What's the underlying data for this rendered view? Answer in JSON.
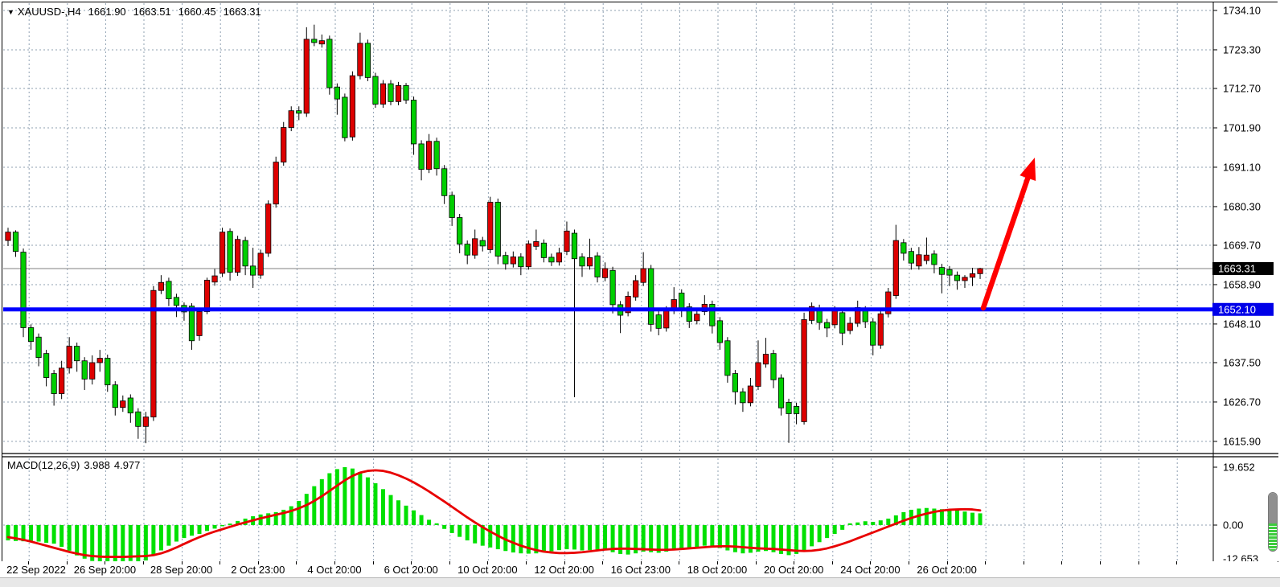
{
  "header": {
    "dropdown_icon": "▼",
    "symbol_period": "XAUUSD-,H4",
    "open": "1661.90",
    "high": "1663.51",
    "low": "1660.45",
    "close": "1663.31"
  },
  "macd_panel": {
    "label": "MACD(12,26,9)",
    "value": "3.988",
    "signal_value": "4.977",
    "axis_labels": [
      "19.652",
      "0.00",
      "-12.653"
    ]
  },
  "price_axis": {
    "labels": [
      "1734.10",
      "1723.30",
      "1712.70",
      "1701.90",
      "1691.10",
      "1680.30",
      "1669.70",
      "1658.90",
      "1648.10",
      "1637.50",
      "1626.70",
      "1615.90"
    ],
    "current_price": "1663.31",
    "support_price": "1652.10"
  },
  "colors": {
    "bull": "#dd0000",
    "bear": "#00cf00",
    "wick": "#000000",
    "grid": "#8fa0b2",
    "current_line": "#808080",
    "support_line": "#0000ff",
    "arrow": "#ff0000",
    "macd_bar": "#00e000",
    "macd_signal": "#e80000",
    "badge_current_bg": "#000000",
    "badge_support_bg": "#0000e8",
    "badge_text": "#ffffff"
  },
  "chart_data": {
    "type": "candlestick",
    "title": "XAUUSD- H4 with MACD(12,26,9)",
    "x_tick_labels": [
      "22 Sep 2022",
      "26 Sep 20:00",
      "28 Sep 20:00",
      "2 Oct 23:00",
      "4 Oct 20:00",
      "6 Oct 20:00",
      "10 Oct 20:00",
      "12 Oct 20:00",
      "16 Oct 23:00",
      "18 Oct 20:00",
      "20 Oct 20:00",
      "24 Oct 20:00",
      "26 Oct 20:00"
    ],
    "price_ticks": [
      1734.1,
      1723.3,
      1712.7,
      1701.9,
      1691.1,
      1680.3,
      1669.7,
      1658.9,
      1648.1,
      1637.5,
      1626.7,
      1615.9
    ],
    "price_range": [
      1615.9,
      1734.1
    ],
    "current_price": 1663.31,
    "support_level": 1652.1,
    "ohlc": [
      [
        1671.0,
        1674.5,
        1669.5,
        1673.3
      ],
      [
        1673.3,
        1673.8,
        1666.5,
        1668.0
      ],
      [
        1667.8,
        1668.8,
        1644.5,
        1647.1
      ],
      [
        1647.1,
        1648.0,
        1641.0,
        1643.3
      ],
      [
        1644.5,
        1645.5,
        1636.5,
        1638.9
      ],
      [
        1640.0,
        1641.0,
        1631.0,
        1633.4
      ],
      [
        1634.5,
        1635.5,
        1625.7,
        1629.0
      ],
      [
        1629.0,
        1638.0,
        1627.5,
        1636.0
      ],
      [
        1636.0,
        1644.5,
        1634.5,
        1642.0
      ],
      [
        1642.0,
        1643.0,
        1635.0,
        1638.0
      ],
      [
        1638.0,
        1639.0,
        1630.0,
        1633.0
      ],
      [
        1633.0,
        1639.5,
        1631.5,
        1637.5
      ],
      [
        1637.5,
        1641.0,
        1635.0,
        1638.7
      ],
      [
        1638.7,
        1639.7,
        1629.5,
        1631.4
      ],
      [
        1631.4,
        1632.4,
        1623.0,
        1625.2
      ],
      [
        1625.2,
        1628.5,
        1624.0,
        1627.0
      ],
      [
        1627.8,
        1628.8,
        1621.0,
        1623.7
      ],
      [
        1624.0,
        1625.0,
        1616.6,
        1620.0
      ],
      [
        1620.0,
        1624.0,
        1615.4,
        1622.6
      ],
      [
        1622.6,
        1658.5,
        1621.5,
        1657.3
      ],
      [
        1657.3,
        1661.5,
        1656.3,
        1659.5
      ],
      [
        1659.8,
        1660.8,
        1653.0,
        1655.0
      ],
      [
        1655.4,
        1656.4,
        1650.0,
        1653.2
      ],
      [
        1653.2,
        1654.0,
        1649.0,
        1651.4
      ],
      [
        1653.0,
        1653.8,
        1641.0,
        1643.5
      ],
      [
        1644.9,
        1652.0,
        1643.5,
        1651.5
      ],
      [
        1651.5,
        1660.8,
        1650.8,
        1660.1
      ],
      [
        1659.6,
        1663.2,
        1658.6,
        1661.3
      ],
      [
        1662.0,
        1674.5,
        1661.0,
        1673.3
      ],
      [
        1673.5,
        1674.3,
        1660.0,
        1662.3
      ],
      [
        1662.3,
        1672.3,
        1661.3,
        1671.3
      ],
      [
        1671.0,
        1672.0,
        1661.5,
        1664.0
      ],
      [
        1664.0,
        1669.0,
        1658.0,
        1661.5
      ],
      [
        1661.5,
        1668.5,
        1660.5,
        1667.5
      ],
      [
        1667.5,
        1682.0,
        1666.5,
        1681.0
      ],
      [
        1681.0,
        1694.0,
        1680.0,
        1692.5
      ],
      [
        1692.5,
        1703.5,
        1691.5,
        1702.0
      ],
      [
        1702.0,
        1707.8,
        1701.0,
        1706.6
      ],
      [
        1706.6,
        1707.8,
        1704.0,
        1705.9
      ],
      [
        1705.9,
        1729.5,
        1704.9,
        1726.2
      ],
      [
        1726.2,
        1730.2,
        1724.3,
        1725.3
      ],
      [
        1724.9,
        1727.5,
        1723.9,
        1725.8
      ],
      [
        1726.2,
        1727.2,
        1711.0,
        1712.9
      ],
      [
        1713.1,
        1714.1,
        1705.5,
        1709.8
      ],
      [
        1710.3,
        1711.3,
        1698.2,
        1699.2
      ],
      [
        1699.4,
        1717.4,
        1698.4,
        1716.2
      ],
      [
        1716.2,
        1728.0,
        1715.2,
        1725.1
      ],
      [
        1725.1,
        1726.1,
        1714.7,
        1715.7
      ],
      [
        1716.0,
        1717.0,
        1707.4,
        1708.4
      ],
      [
        1708.4,
        1715.0,
        1707.4,
        1714.0
      ],
      [
        1714.0,
        1715.0,
        1708.1,
        1709.1
      ],
      [
        1709.1,
        1714.5,
        1708.1,
        1713.5
      ],
      [
        1713.5,
        1714.2,
        1708.5,
        1709.5
      ],
      [
        1709.5,
        1710.5,
        1694.5,
        1697.5
      ],
      [
        1697.5,
        1698.5,
        1687.5,
        1690.5
      ],
      [
        1690.5,
        1700.2,
        1689.5,
        1698.2
      ],
      [
        1698.2,
        1699.2,
        1688.8,
        1690.7
      ],
      [
        1690.7,
        1691.7,
        1681.0,
        1683.3
      ],
      [
        1683.4,
        1684.4,
        1675.0,
        1677.3
      ],
      [
        1677.3,
        1678.3,
        1667.5,
        1670.0
      ],
      [
        1670.0,
        1671.0,
        1664.5,
        1667.0
      ],
      [
        1667.0,
        1674.0,
        1666.0,
        1671.5
      ],
      [
        1671.0,
        1672.0,
        1668.0,
        1669.5
      ],
      [
        1668.5,
        1683.0,
        1667.5,
        1681.5
      ],
      [
        1681.5,
        1682.5,
        1664.5,
        1666.7
      ],
      [
        1666.9,
        1667.9,
        1663.0,
        1664.6
      ],
      [
        1664.6,
        1668.0,
        1663.6,
        1666.5
      ],
      [
        1666.5,
        1667.5,
        1661.5,
        1663.8
      ],
      [
        1663.8,
        1671.0,
        1663.0,
        1670.1
      ],
      [
        1669.4,
        1674.0,
        1668.4,
        1670.7
      ],
      [
        1670.3,
        1671.3,
        1665.0,
        1666.3
      ],
      [
        1666.4,
        1667.4,
        1664.0,
        1665.1
      ],
      [
        1665.1,
        1669.0,
        1664.1,
        1667.6
      ],
      [
        1668.0,
        1676.2,
        1667.0,
        1673.6
      ],
      [
        1673.0,
        1674.0,
        1628.0,
        1666.0
      ],
      [
        1666.5,
        1667.5,
        1661.0,
        1664.0
      ],
      [
        1664.0,
        1671.5,
        1663.0,
        1666.3
      ],
      [
        1666.8,
        1667.8,
        1659.5,
        1661.0
      ],
      [
        1660.8,
        1665.0,
        1659.8,
        1663.3
      ],
      [
        1662.8,
        1663.8,
        1651.0,
        1653.4
      ],
      [
        1653.4,
        1654.4,
        1645.6,
        1650.5
      ],
      [
        1651.2,
        1657.0,
        1650.2,
        1655.7
      ],
      [
        1655.5,
        1661.5,
        1654.5,
        1660.0
      ],
      [
        1659.5,
        1667.8,
        1658.5,
        1663.3
      ],
      [
        1663.3,
        1664.3,
        1646.0,
        1648.0
      ],
      [
        1650.6,
        1651.6,
        1645.0,
        1646.9
      ],
      [
        1647.0,
        1653.0,
        1646.0,
        1651.8
      ],
      [
        1651.8,
        1658.2,
        1650.8,
        1654.8
      ],
      [
        1656.6,
        1657.6,
        1650.0,
        1651.7
      ],
      [
        1652.8,
        1653.8,
        1647.0,
        1648.8
      ],
      [
        1649.0,
        1652.5,
        1648.0,
        1650.8
      ],
      [
        1651.5,
        1656.0,
        1650.5,
        1653.5
      ],
      [
        1653.5,
        1654.5,
        1645.5,
        1647.6
      ],
      [
        1649.0,
        1650.0,
        1641.0,
        1643.0
      ],
      [
        1643.5,
        1644.5,
        1632.0,
        1634.0
      ],
      [
        1634.5,
        1635.5,
        1626.0,
        1629.5
      ],
      [
        1629.5,
        1630.5,
        1624.0,
        1626.5
      ],
      [
        1626.5,
        1633.3,
        1625.5,
        1631.1
      ],
      [
        1631.0,
        1643.6,
        1630.0,
        1637.5
      ],
      [
        1637.1,
        1644.3,
        1636.1,
        1639.8
      ],
      [
        1640.0,
        1641.0,
        1630.5,
        1632.8
      ],
      [
        1633.3,
        1634.3,
        1623.0,
        1625.1
      ],
      [
        1626.6,
        1627.6,
        1615.5,
        1623.5
      ],
      [
        1625.5,
        1626.5,
        1620.6,
        1623.5
      ],
      [
        1621.3,
        1651.2,
        1620.5,
        1649.3
      ],
      [
        1649.1,
        1654.0,
        1648.1,
        1652.9
      ],
      [
        1652.4,
        1653.4,
        1646.5,
        1648.5
      ],
      [
        1648.5,
        1649.5,
        1644.5,
        1647.0
      ],
      [
        1647.9,
        1653.0,
        1646.9,
        1651.9
      ],
      [
        1651.2,
        1652.2,
        1642.3,
        1645.6
      ],
      [
        1646.3,
        1650.0,
        1645.3,
        1648.3
      ],
      [
        1648.3,
        1654.5,
        1647.3,
        1652.6
      ],
      [
        1652.0,
        1653.0,
        1647.0,
        1648.7
      ],
      [
        1648.7,
        1649.7,
        1639.5,
        1642.3
      ],
      [
        1642.3,
        1652.0,
        1641.3,
        1650.9
      ],
      [
        1650.9,
        1658.0,
        1649.9,
        1656.9
      ],
      [
        1655.9,
        1675.3,
        1655.0,
        1671.0
      ],
      [
        1670.4,
        1671.4,
        1665.5,
        1667.5
      ],
      [
        1668.0,
        1669.0,
        1663.0,
        1664.8
      ],
      [
        1664.0,
        1669.2,
        1663.0,
        1667.1
      ],
      [
        1665.5,
        1671.8,
        1664.5,
        1667.0
      ],
      [
        1667.3,
        1668.3,
        1662.0,
        1664.4
      ],
      [
        1663.6,
        1664.6,
        1656.5,
        1661.7
      ],
      [
        1663.0,
        1664.0,
        1658.5,
        1661.5
      ],
      [
        1661.5,
        1662.5,
        1657.5,
        1660.0
      ],
      [
        1660.0,
        1661.5,
        1658.0,
        1660.9
      ],
      [
        1660.9,
        1663.5,
        1658.5,
        1661.9
      ],
      [
        1661.9,
        1663.51,
        1660.45,
        1663.31
      ]
    ],
    "macd": {
      "params": [
        12,
        26,
        9
      ],
      "axis_ticks": [
        19.652,
        0.0,
        -12.653
      ],
      "last_value": 3.988,
      "last_signal": 4.977,
      "histogram": [
        -5.2,
        -5.4,
        -5.5,
        -5.3,
        -5.6,
        -6.0,
        -6.3,
        -7.4,
        -8.7,
        -10.3,
        -11.4,
        -12.2,
        -12.65,
        -12.4,
        -12.3,
        -12.4,
        -12.2,
        -12.3,
        -12.0,
        -10.4,
        -8.6,
        -7.0,
        -5.6,
        -4.4,
        -3.6,
        -3.0,
        -2.0,
        -1.2,
        -0.4,
        0.5,
        1.4,
        2.2,
        3.0,
        3.6,
        4.0,
        4.4,
        5.2,
        6.4,
        8.2,
        10.6,
        13.2,
        15.6,
        17.6,
        19.0,
        19.65,
        19.2,
        18.0,
        16.2,
        14.2,
        12.2,
        10.2,
        8.4,
        6.6,
        5.0,
        3.4,
        1.8,
        0.6,
        -1.3,
        -2.7,
        -4.0,
        -5.2,
        -6.2,
        -7.0,
        -7.6,
        -8.2,
        -8.8,
        -9.3,
        -9.6,
        -9.7,
        -9.6,
        -9.3,
        -8.9,
        -8.5,
        -8.2,
        -8.3,
        -8.6,
        -8.5,
        -8.3,
        -8.6,
        -9.2,
        -9.8,
        -10.0,
        -9.6,
        -9.0,
        -9.2,
        -9.4,
        -9.0,
        -8.4,
        -8.0,
        -7.8,
        -7.4,
        -7.0,
        -7.2,
        -7.8,
        -8.6,
        -9.2,
        -9.6,
        -9.4,
        -9.0,
        -8.8,
        -9.2,
        -9.8,
        -10.2,
        -9.8,
        -8.8,
        -7.2,
        -5.8,
        -4.4,
        -3.0,
        -1.6,
        0.6,
        0.9,
        1.3,
        1.1,
        1.6,
        2.2,
        3.3,
        4.4,
        5.2,
        5.6,
        5.8,
        5.6,
        5.4,
        5.3,
        5.2,
        4.6,
        4.2,
        3.988
      ],
      "signal": [
        -4.1,
        -4.5,
        -5.0,
        -5.6,
        -6.3,
        -7.0,
        -7.7,
        -8.4,
        -9.1,
        -9.7,
        -10.2,
        -10.5,
        -10.7,
        -10.8,
        -10.8,
        -10.8,
        -10.7,
        -10.6,
        -10.5,
        -10.2,
        -9.6,
        -8.7,
        -7.6,
        -6.4,
        -5.2,
        -4.1,
        -3.1,
        -2.2,
        -1.4,
        -0.6,
        0.2,
        0.9,
        1.6,
        2.3,
        2.9,
        3.5,
        4.1,
        4.8,
        5.7,
        6.8,
        8.2,
        9.8,
        11.6,
        13.4,
        15.2,
        16.7,
        17.8,
        18.4,
        18.6,
        18.4,
        17.8,
        16.9,
        15.8,
        14.5,
        13.0,
        11.4,
        9.7,
        8.0,
        6.2,
        4.4,
        2.6,
        0.9,
        -0.7,
        -2.2,
        -3.6,
        -4.9,
        -6.0,
        -7.0,
        -7.8,
        -8.5,
        -9.0,
        -9.3,
        -9.5,
        -9.5,
        -9.4,
        -9.2,
        -8.9,
        -8.6,
        -8.3,
        -8.1,
        -8.0,
        -8.0,
        -8.1,
        -8.2,
        -8.3,
        -8.4,
        -8.4,
        -8.3,
        -8.1,
        -7.9,
        -7.7,
        -7.5,
        -7.3,
        -7.2,
        -7.2,
        -7.3,
        -7.5,
        -7.7,
        -7.9,
        -8.0,
        -8.1,
        -8.3,
        -8.5,
        -8.7,
        -8.8,
        -8.7,
        -8.4,
        -7.9,
        -7.2,
        -6.4,
        -5.5,
        -4.5,
        -3.5,
        -2.5,
        -1.5,
        -0.5,
        0.5,
        1.5,
        2.4,
        3.2,
        3.9,
        4.5,
        4.9,
        5.2,
        5.3,
        5.4,
        5.3,
        4.977
      ]
    },
    "annotations": {
      "arrow_up": {
        "tail": [
          1220,
          380
        ],
        "tip": [
          1284,
          193
        ]
      }
    }
  }
}
